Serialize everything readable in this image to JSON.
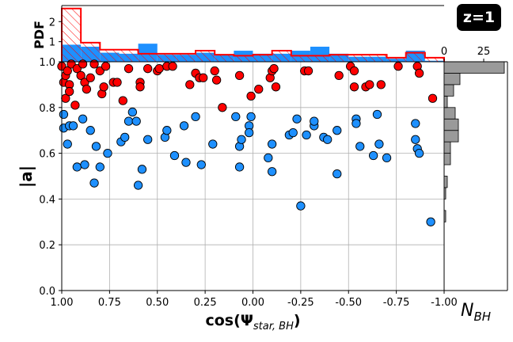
{
  "badge": "z=1",
  "colors": {
    "red": "#ff0000",
    "blue": "#1e90ff",
    "gray": "#9a9a9a"
  },
  "chart_data": {
    "type": "scatter",
    "xlabel_main": "cos(Ψ",
    "xlabel_sub": "star, BH",
    "xlabel_close": ")",
    "ylabel": "|a|",
    "top_ylabel": "PDF",
    "right_xlabel_main": "N",
    "right_xlabel_sub": "BH",
    "xlim": [
      1.0,
      -1.0
    ],
    "ylim": [
      0.0,
      1.0
    ],
    "x_ticks": [
      "1.00",
      "0.75",
      "0.50",
      "0.25",
      "0.00",
      "-0.25",
      "-0.50",
      "-0.75",
      "-1.00"
    ],
    "y_ticks": [
      "0.0",
      "0.2",
      "0.4",
      "0.6",
      "0.8",
      "1.0"
    ],
    "top_y_ticks": [
      "1",
      "2"
    ],
    "right_x_ticks": [
      "0",
      "25"
    ],
    "series": [
      {
        "color": "red",
        "points": [
          [
            1.0,
            0.98
          ],
          [
            0.99,
            0.91
          ],
          [
            0.98,
            0.94
          ],
          [
            0.97,
            0.96
          ],
          [
            0.98,
            0.84
          ],
          [
            0.96,
            0.9
          ],
          [
            0.96,
            0.87
          ],
          [
            0.95,
            0.99
          ],
          [
            0.93,
            0.81
          ],
          [
            0.92,
            0.97
          ],
          [
            0.9,
            0.94
          ],
          [
            0.89,
            0.99
          ],
          [
            0.88,
            0.91
          ],
          [
            0.87,
            0.88
          ],
          [
            0.85,
            0.93
          ],
          [
            0.83,
            0.99
          ],
          [
            0.8,
            0.96
          ],
          [
            0.79,
            0.86
          ],
          [
            0.78,
            0.89
          ],
          [
            0.77,
            0.98
          ],
          [
            0.73,
            0.91
          ],
          [
            0.71,
            0.91
          ],
          [
            0.68,
            0.83
          ],
          [
            0.65,
            0.97
          ],
          [
            0.59,
            0.91
          ],
          [
            0.59,
            0.89
          ],
          [
            0.55,
            0.97
          ],
          [
            0.5,
            0.96
          ],
          [
            0.49,
            0.97
          ],
          [
            0.45,
            0.98
          ],
          [
            0.42,
            0.98
          ],
          [
            0.33,
            0.9
          ],
          [
            0.3,
            0.95
          ],
          [
            0.28,
            0.93
          ],
          [
            0.26,
            0.93
          ],
          [
            0.2,
            0.96
          ],
          [
            0.19,
            0.92
          ],
          [
            0.16,
            0.8
          ],
          [
            0.07,
            0.94
          ],
          [
            0.01,
            0.85
          ],
          [
            -0.03,
            0.88
          ],
          [
            -0.09,
            0.93
          ],
          [
            -0.1,
            0.96
          ],
          [
            -0.11,
            0.97
          ],
          [
            -0.12,
            0.89
          ],
          [
            -0.27,
            0.96
          ],
          [
            -0.29,
            0.96
          ],
          [
            -0.45,
            0.94
          ],
          [
            -0.51,
            0.98
          ],
          [
            -0.53,
            0.96
          ],
          [
            -0.53,
            0.89
          ],
          [
            -0.59,
            0.89
          ],
          [
            -0.61,
            0.9
          ],
          [
            -0.67,
            0.9
          ],
          [
            -0.76,
            0.98
          ],
          [
            -0.86,
            0.98
          ],
          [
            -0.87,
            0.95
          ],
          [
            -0.94,
            0.84
          ]
        ]
      },
      {
        "color": "blue",
        "points": [
          [
            0.99,
            0.77
          ],
          [
            0.99,
            0.71
          ],
          [
            0.96,
            0.72
          ],
          [
            0.94,
            0.72
          ],
          [
            0.97,
            0.64
          ],
          [
            0.92,
            0.54
          ],
          [
            0.89,
            0.75
          ],
          [
            0.88,
            0.55
          ],
          [
            0.85,
            0.7
          ],
          [
            0.83,
            0.47
          ],
          [
            0.82,
            0.63
          ],
          [
            0.8,
            0.54
          ],
          [
            0.76,
            0.6
          ],
          [
            0.69,
            0.65
          ],
          [
            0.67,
            0.67
          ],
          [
            0.65,
            0.74
          ],
          [
            0.63,
            0.78
          ],
          [
            0.61,
            0.74
          ],
          [
            0.6,
            0.46
          ],
          [
            0.58,
            0.53
          ],
          [
            0.55,
            0.66
          ],
          [
            0.46,
            0.67
          ],
          [
            0.45,
            0.7
          ],
          [
            0.41,
            0.59
          ],
          [
            0.36,
            0.72
          ],
          [
            0.35,
            0.56
          ],
          [
            0.3,
            0.76
          ],
          [
            0.27,
            0.55
          ],
          [
            0.21,
            0.64
          ],
          [
            0.09,
            0.76
          ],
          [
            0.07,
            0.54
          ],
          [
            0.07,
            0.63
          ],
          [
            0.06,
            0.66
          ],
          [
            0.02,
            0.72
          ],
          [
            0.02,
            0.69
          ],
          [
            0.01,
            0.76
          ],
          [
            -0.08,
            0.58
          ],
          [
            -0.1,
            0.64
          ],
          [
            -0.1,
            0.52
          ],
          [
            -0.19,
            0.68
          ],
          [
            -0.21,
            0.69
          ],
          [
            -0.23,
            0.75
          ],
          [
            -0.25,
            0.37
          ],
          [
            -0.28,
            0.68
          ],
          [
            -0.32,
            0.72
          ],
          [
            -0.32,
            0.74
          ],
          [
            -0.37,
            0.67
          ],
          [
            -0.39,
            0.66
          ],
          [
            -0.44,
            0.7
          ],
          [
            -0.44,
            0.51
          ],
          [
            -0.54,
            0.75
          ],
          [
            -0.54,
            0.73
          ],
          [
            -0.56,
            0.63
          ],
          [
            -0.63,
            0.59
          ],
          [
            -0.65,
            0.77
          ],
          [
            -0.66,
            0.64
          ],
          [
            -0.7,
            0.58
          ],
          [
            -0.85,
            0.73
          ],
          [
            -0.85,
            0.66
          ],
          [
            -0.86,
            0.62
          ],
          [
            -0.87,
            0.6
          ],
          [
            -0.93,
            0.3
          ]
        ]
      }
    ],
    "top_histograms": {
      "ylim": [
        0,
        2.8
      ],
      "bin_edges": [
        1.0,
        0.9,
        0.8,
        0.7,
        0.6,
        0.5,
        0.4,
        0.3,
        0.2,
        0.1,
        0.0,
        -0.1,
        -0.2,
        -0.3,
        -0.4,
        -0.5,
        -0.6,
        -0.7,
        -0.8,
        -0.9,
        -1.0
      ],
      "red": [
        2.65,
        0.95,
        0.6,
        0.6,
        0.4,
        0.4,
        0.4,
        0.55,
        0.35,
        0.3,
        0.35,
        0.55,
        0.3,
        0.3,
        0.35,
        0.35,
        0.35,
        0.2,
        0.45,
        0.2
      ],
      "blue": [
        0.85,
        0.75,
        0.45,
        0.4,
        0.9,
        0.35,
        0.35,
        0.45,
        0.35,
        0.55,
        0.4,
        0.4,
        0.55,
        0.75,
        0.4,
        0.25,
        0.25,
        0.15,
        0.55,
        0.05
      ]
    },
    "right_histogram": {
      "xlim": [
        0,
        40
      ],
      "bin_edges": [
        0.0,
        0.05,
        0.1,
        0.15,
        0.2,
        0.25,
        0.3,
        0.35,
        0.4,
        0.45,
        0.5,
        0.55,
        0.6,
        0.65,
        0.7,
        0.75,
        0.8,
        0.85,
        0.9,
        0.95,
        1.0
      ],
      "counts": [
        0,
        0,
        0,
        0,
        0,
        0,
        1,
        0,
        1,
        2,
        0,
        4,
        4,
        9,
        9,
        7,
        2,
        6,
        10,
        38
      ]
    }
  }
}
